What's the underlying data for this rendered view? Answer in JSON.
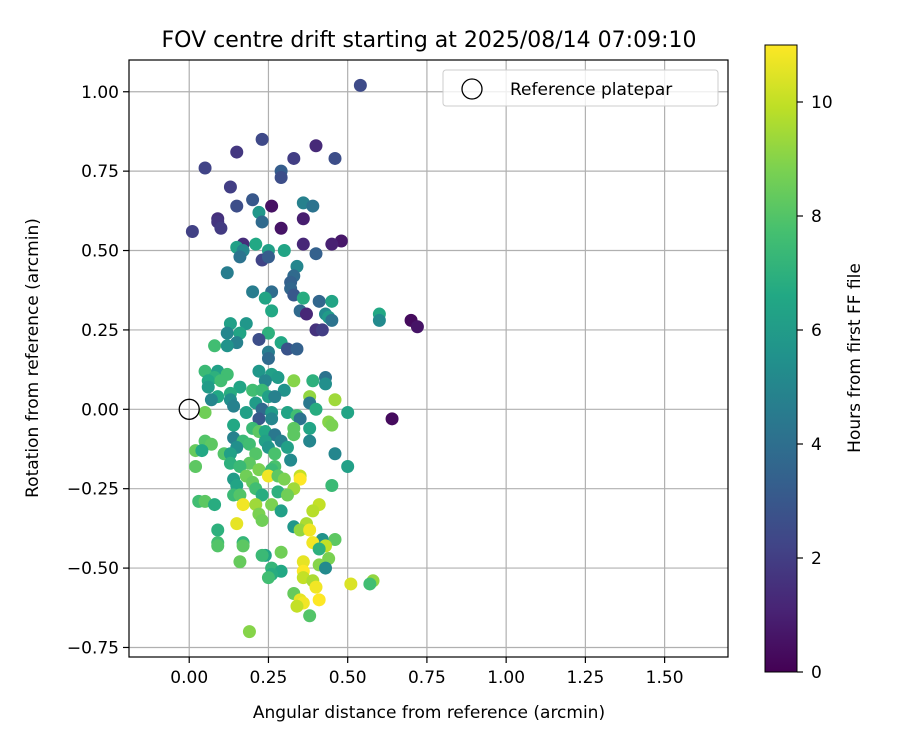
{
  "chart_data": {
    "type": "scatter",
    "title": "FOV centre drift starting at 2025/08/14 07:09:10",
    "xlabel": "Angular distance from reference (arcmin)",
    "ylabel": "Rotation from reference (arcmin)",
    "xlim": [
      -0.19,
      1.7
    ],
    "ylim": [
      -0.78,
      1.1
    ],
    "xticks": [
      0.0,
      0.25,
      0.5,
      0.75,
      1.0,
      1.25,
      1.5
    ],
    "xtick_labels": [
      "0.00",
      "0.25",
      "0.50",
      "0.75",
      "1.00",
      "1.25",
      "1.50"
    ],
    "yticks": [
      -0.75,
      -0.5,
      -0.25,
      0.0,
      0.25,
      0.5,
      0.75,
      1.0
    ],
    "ytick_labels": [
      "−0.75",
      "−0.50",
      "−0.25",
      "0.00",
      "0.25",
      "0.50",
      "0.75",
      "1.00"
    ],
    "grid": true,
    "legend": {
      "placement": "top-right",
      "entries": [
        {
          "label": "Reference platepar",
          "marker": "hollow-circle"
        }
      ]
    },
    "reference_point": {
      "x": 0.0,
      "y": 0.0
    },
    "colorbar": {
      "label": "Hours from first FF file",
      "colormap": "viridis",
      "range": [
        0,
        11
      ],
      "ticks": [
        0,
        2,
        4,
        6,
        8,
        10
      ],
      "tick_labels": [
        "0",
        "2",
        "4",
        "6",
        "8",
        "10"
      ]
    },
    "points": [
      {
        "x": 0.54,
        "y": 1.02,
        "c": 2.5
      },
      {
        "x": 0.23,
        "y": 0.85,
        "c": 2.4
      },
      {
        "x": 0.4,
        "y": 0.83,
        "c": 1.3
      },
      {
        "x": 0.15,
        "y": 0.81,
        "c": 1.8
      },
      {
        "x": 0.33,
        "y": 0.79,
        "c": 2.0
      },
      {
        "x": 0.46,
        "y": 0.79,
        "c": 2.6
      },
      {
        "x": 0.05,
        "y": 0.76,
        "c": 2.2
      },
      {
        "x": 0.29,
        "y": 0.75,
        "c": 3.2
      },
      {
        "x": 0.29,
        "y": 0.73,
        "c": 2.6
      },
      {
        "x": 0.13,
        "y": 0.7,
        "c": 2.0
      },
      {
        "x": 0.2,
        "y": 0.66,
        "c": 3.0
      },
      {
        "x": 0.36,
        "y": 0.65,
        "c": 4.8
      },
      {
        "x": 0.39,
        "y": 0.64,
        "c": 4.2
      },
      {
        "x": 0.15,
        "y": 0.64,
        "c": 2.6
      },
      {
        "x": 0.26,
        "y": 0.64,
        "c": 0.5
      },
      {
        "x": 0.22,
        "y": 0.62,
        "c": 5.8
      },
      {
        "x": 0.36,
        "y": 0.6,
        "c": 0.9
      },
      {
        "x": 0.09,
        "y": 0.6,
        "c": 1.5
      },
      {
        "x": 0.09,
        "y": 0.59,
        "c": 1.7
      },
      {
        "x": 0.23,
        "y": 0.59,
        "c": 3.8
      },
      {
        "x": 0.1,
        "y": 0.57,
        "c": 1.9
      },
      {
        "x": 0.29,
        "y": 0.57,
        "c": 0.6
      },
      {
        "x": 0.01,
        "y": 0.56,
        "c": 2.1
      },
      {
        "x": 0.48,
        "y": 0.53,
        "c": 0.7
      },
      {
        "x": 0.45,
        "y": 0.52,
        "c": 1.0
      },
      {
        "x": 0.36,
        "y": 0.52,
        "c": 1.2
      },
      {
        "x": 0.17,
        "y": 0.52,
        "c": 1.4
      },
      {
        "x": 0.21,
        "y": 0.52,
        "c": 6.6
      },
      {
        "x": 0.15,
        "y": 0.51,
        "c": 6.2
      },
      {
        "x": 0.17,
        "y": 0.5,
        "c": 5.0
      },
      {
        "x": 0.25,
        "y": 0.5,
        "c": 6.2
      },
      {
        "x": 0.3,
        "y": 0.5,
        "c": 6.4
      },
      {
        "x": 0.4,
        "y": 0.49,
        "c": 3.4
      },
      {
        "x": 0.16,
        "y": 0.48,
        "c": 4.2
      },
      {
        "x": 0.23,
        "y": 0.47,
        "c": 2.2
      },
      {
        "x": 0.25,
        "y": 0.48,
        "c": 3.2
      },
      {
        "x": 0.34,
        "y": 0.45,
        "c": 5.0
      },
      {
        "x": 0.12,
        "y": 0.43,
        "c": 4.6
      },
      {
        "x": 0.33,
        "y": 0.42,
        "c": 3.8
      },
      {
        "x": 0.32,
        "y": 0.4,
        "c": 3.4
      },
      {
        "x": 0.32,
        "y": 0.38,
        "c": 3.6
      },
      {
        "x": 0.26,
        "y": 0.37,
        "c": 3.9
      },
      {
        "x": 0.2,
        "y": 0.37,
        "c": 4.6
      },
      {
        "x": 0.33,
        "y": 0.36,
        "c": 3.0
      },
      {
        "x": 0.24,
        "y": 0.35,
        "c": 6.4
      },
      {
        "x": 0.36,
        "y": 0.35,
        "c": 6.8
      },
      {
        "x": 0.41,
        "y": 0.34,
        "c": 3.6
      },
      {
        "x": 0.45,
        "y": 0.34,
        "c": 6.4
      },
      {
        "x": 0.35,
        "y": 0.31,
        "c": 3.8
      },
      {
        "x": 0.26,
        "y": 0.31,
        "c": 6.6
      },
      {
        "x": 0.37,
        "y": 0.3,
        "c": 1.2
      },
      {
        "x": 0.43,
        "y": 0.3,
        "c": 5.2
      },
      {
        "x": 0.44,
        "y": 0.29,
        "c": 6.0
      },
      {
        "x": 0.45,
        "y": 0.28,
        "c": 4.2
      },
      {
        "x": 0.6,
        "y": 0.3,
        "c": 6.6
      },
      {
        "x": 0.6,
        "y": 0.28,
        "c": 5.2
      },
      {
        "x": 0.7,
        "y": 0.28,
        "c": 0.3
      },
      {
        "x": 0.72,
        "y": 0.26,
        "c": 0.6
      },
      {
        "x": 0.13,
        "y": 0.27,
        "c": 6.2
      },
      {
        "x": 0.18,
        "y": 0.27,
        "c": 5.8
      },
      {
        "x": 0.4,
        "y": 0.25,
        "c": 1.6
      },
      {
        "x": 0.42,
        "y": 0.25,
        "c": 2.0
      },
      {
        "x": 0.12,
        "y": 0.24,
        "c": 5.0
      },
      {
        "x": 0.16,
        "y": 0.24,
        "c": 6.4
      },
      {
        "x": 0.25,
        "y": 0.24,
        "c": 7.0
      },
      {
        "x": 0.22,
        "y": 0.22,
        "c": 2.6
      },
      {
        "x": 0.15,
        "y": 0.21,
        "c": 4.8
      },
      {
        "x": 0.29,
        "y": 0.21,
        "c": 6.6
      },
      {
        "x": 0.08,
        "y": 0.2,
        "c": 7.6
      },
      {
        "x": 0.12,
        "y": 0.2,
        "c": 5.6
      },
      {
        "x": 0.31,
        "y": 0.19,
        "c": 2.8
      },
      {
        "x": 0.34,
        "y": 0.19,
        "c": 3.4
      },
      {
        "x": 0.25,
        "y": 0.18,
        "c": 4.6
      },
      {
        "x": 0.25,
        "y": 0.16,
        "c": 3.8
      },
      {
        "x": 0.05,
        "y": 0.12,
        "c": 7.4
      },
      {
        "x": 0.09,
        "y": 0.12,
        "c": 6.2
      },
      {
        "x": 0.22,
        "y": 0.12,
        "c": 5.8
      },
      {
        "x": 0.12,
        "y": 0.11,
        "c": 7.6
      },
      {
        "x": 0.26,
        "y": 0.11,
        "c": 6.2
      },
      {
        "x": 0.08,
        "y": 0.1,
        "c": 7.0
      },
      {
        "x": 0.28,
        "y": 0.1,
        "c": 6.0
      },
      {
        "x": 0.43,
        "y": 0.1,
        "c": 4.2
      },
      {
        "x": 0.06,
        "y": 0.09,
        "c": 6.6
      },
      {
        "x": 0.1,
        "y": 0.09,
        "c": 7.6
      },
      {
        "x": 0.24,
        "y": 0.09,
        "c": 5.0
      },
      {
        "x": 0.33,
        "y": 0.09,
        "c": 9.0
      },
      {
        "x": 0.39,
        "y": 0.09,
        "c": 7.0
      },
      {
        "x": 0.43,
        "y": 0.08,
        "c": 5.4
      },
      {
        "x": 0.06,
        "y": 0.07,
        "c": 6.0
      },
      {
        "x": 0.16,
        "y": 0.07,
        "c": 6.4
      },
      {
        "x": 0.2,
        "y": 0.06,
        "c": 7.6
      },
      {
        "x": 0.23,
        "y": 0.06,
        "c": 7.4
      },
      {
        "x": 0.3,
        "y": 0.06,
        "c": 5.6
      },
      {
        "x": 0.13,
        "y": 0.05,
        "c": 6.8
      },
      {
        "x": 0.09,
        "y": 0.04,
        "c": 6.6
      },
      {
        "x": 0.07,
        "y": 0.03,
        "c": 5.0
      },
      {
        "x": 0.25,
        "y": 0.04,
        "c": 6.2
      },
      {
        "x": 0.27,
        "y": 0.04,
        "c": 4.8
      },
      {
        "x": 0.38,
        "y": 0.04,
        "c": 9.2
      },
      {
        "x": 0.46,
        "y": 0.03,
        "c": 9.4
      },
      {
        "x": 0.13,
        "y": 0.03,
        "c": 5.4
      },
      {
        "x": 0.14,
        "y": 0.01,
        "c": 4.8
      },
      {
        "x": 0.21,
        "y": 0.02,
        "c": 6.0
      },
      {
        "x": 0.38,
        "y": 0.02,
        "c": 4.4
      },
      {
        "x": 0.23,
        "y": 0.0,
        "c": 3.8
      },
      {
        "x": 0.31,
        "y": -0.01,
        "c": 6.4
      },
      {
        "x": 0.4,
        "y": 0.0,
        "c": 6.8
      },
      {
        "x": 0.05,
        "y": -0.01,
        "c": 8.6
      },
      {
        "x": 0.26,
        "y": -0.01,
        "c": 6.0
      },
      {
        "x": 0.18,
        "y": -0.01,
        "c": 6.2
      },
      {
        "x": 0.5,
        "y": -0.01,
        "c": 6.4
      },
      {
        "x": 0.34,
        "y": -0.02,
        "c": 7.6
      },
      {
        "x": 0.22,
        "y": -0.03,
        "c": 3.0
      },
      {
        "x": 0.26,
        "y": -0.03,
        "c": 5.0
      },
      {
        "x": 0.35,
        "y": -0.03,
        "c": 4.2
      },
      {
        "x": 0.44,
        "y": -0.04,
        "c": 9.0
      },
      {
        "x": 0.64,
        "y": -0.03,
        "c": 0.3
      },
      {
        "x": 0.14,
        "y": -0.05,
        "c": 6.6
      },
      {
        "x": 0.2,
        "y": -0.06,
        "c": 7.4
      },
      {
        "x": 0.22,
        "y": -0.07,
        "c": 8.2
      },
      {
        "x": 0.24,
        "y": -0.07,
        "c": 6.6
      },
      {
        "x": 0.45,
        "y": -0.05,
        "c": 8.8
      },
      {
        "x": 0.33,
        "y": -0.06,
        "c": 8.2
      },
      {
        "x": 0.38,
        "y": -0.06,
        "c": 6.4
      },
      {
        "x": 0.27,
        "y": -0.08,
        "c": 4.4
      },
      {
        "x": 0.14,
        "y": -0.09,
        "c": 4.8
      },
      {
        "x": 0.33,
        "y": -0.08,
        "c": 8.2
      },
      {
        "x": 0.05,
        "y": -0.1,
        "c": 8.0
      },
      {
        "x": 0.07,
        "y": -0.11,
        "c": 8.2
      },
      {
        "x": 0.17,
        "y": -0.1,
        "c": 7.4
      },
      {
        "x": 0.24,
        "y": -0.1,
        "c": 6.2
      },
      {
        "x": 0.29,
        "y": -0.1,
        "c": 4.8
      },
      {
        "x": 0.38,
        "y": -0.1,
        "c": 5.0
      },
      {
        "x": 0.19,
        "y": -0.11,
        "c": 7.6
      },
      {
        "x": 0.15,
        "y": -0.12,
        "c": 5.4
      },
      {
        "x": 0.25,
        "y": -0.12,
        "c": 5.8
      },
      {
        "x": 0.31,
        "y": -0.12,
        "c": 6.2
      },
      {
        "x": 0.02,
        "y": -0.13,
        "c": 8.4
      },
      {
        "x": 0.04,
        "y": -0.13,
        "c": 6.6
      },
      {
        "x": 0.11,
        "y": -0.14,
        "c": 8.0
      },
      {
        "x": 0.13,
        "y": -0.14,
        "c": 6.2
      },
      {
        "x": 0.21,
        "y": -0.14,
        "c": 8.0
      },
      {
        "x": 0.27,
        "y": -0.14,
        "c": 7.8
      },
      {
        "x": 0.46,
        "y": -0.14,
        "c": 5.0
      },
      {
        "x": 0.32,
        "y": -0.16,
        "c": 5.2
      },
      {
        "x": 0.13,
        "y": -0.17,
        "c": 7.0
      },
      {
        "x": 0.19,
        "y": -0.17,
        "c": 8.2
      },
      {
        "x": 0.27,
        "y": -0.18,
        "c": 7.8
      },
      {
        "x": 0.02,
        "y": -0.18,
        "c": 8.2
      },
      {
        "x": 0.16,
        "y": -0.18,
        "c": 7.4
      },
      {
        "x": 0.5,
        "y": -0.18,
        "c": 6.2
      },
      {
        "x": 0.22,
        "y": -0.19,
        "c": 8.8
      },
      {
        "x": 0.26,
        "y": -0.19,
        "c": 7.4
      },
      {
        "x": 0.18,
        "y": -0.21,
        "c": 8.6
      },
      {
        "x": 0.25,
        "y": -0.21,
        "c": 10.8
      },
      {
        "x": 0.28,
        "y": -0.21,
        "c": 8.2
      },
      {
        "x": 0.35,
        "y": -0.21,
        "c": 10.0
      },
      {
        "x": 0.14,
        "y": -0.22,
        "c": 6.0
      },
      {
        "x": 0.2,
        "y": -0.23,
        "c": 8.4
      },
      {
        "x": 0.3,
        "y": -0.22,
        "c": 8.8
      },
      {
        "x": 0.35,
        "y": -0.22,
        "c": 11.0
      },
      {
        "x": 0.15,
        "y": -0.24,
        "c": 6.4
      },
      {
        "x": 0.45,
        "y": -0.24,
        "c": 7.4
      },
      {
        "x": 0.33,
        "y": -0.25,
        "c": 9.4
      },
      {
        "x": 0.21,
        "y": -0.25,
        "c": 7.6
      },
      {
        "x": 0.28,
        "y": -0.26,
        "c": 7.0
      },
      {
        "x": 0.31,
        "y": -0.27,
        "c": 8.6
      },
      {
        "x": 0.23,
        "y": -0.27,
        "c": 6.8
      },
      {
        "x": 0.14,
        "y": -0.27,
        "c": 7.4
      },
      {
        "x": 0.16,
        "y": -0.27,
        "c": 8.0
      },
      {
        "x": 0.03,
        "y": -0.29,
        "c": 7.6
      },
      {
        "x": 0.05,
        "y": -0.29,
        "c": 8.2
      },
      {
        "x": 0.08,
        "y": -0.3,
        "c": 6.8
      },
      {
        "x": 0.17,
        "y": -0.3,
        "c": 10.8
      },
      {
        "x": 0.21,
        "y": -0.3,
        "c": 9.4
      },
      {
        "x": 0.26,
        "y": -0.3,
        "c": 8.8
      },
      {
        "x": 0.41,
        "y": -0.3,
        "c": 10.0
      },
      {
        "x": 0.29,
        "y": -0.32,
        "c": 6.2
      },
      {
        "x": 0.39,
        "y": -0.32,
        "c": 9.8
      },
      {
        "x": 0.22,
        "y": -0.33,
        "c": 8.8
      },
      {
        "x": 0.23,
        "y": -0.35,
        "c": 8.6
      },
      {
        "x": 0.15,
        "y": -0.36,
        "c": 10.6
      },
      {
        "x": 0.37,
        "y": -0.36,
        "c": 9.6
      },
      {
        "x": 0.33,
        "y": -0.37,
        "c": 5.8
      },
      {
        "x": 0.09,
        "y": -0.38,
        "c": 7.0
      },
      {
        "x": 0.35,
        "y": -0.38,
        "c": 9.2
      },
      {
        "x": 0.38,
        "y": -0.38,
        "c": 10.8
      },
      {
        "x": 0.42,
        "y": -0.41,
        "c": 5.6
      },
      {
        "x": 0.46,
        "y": -0.41,
        "c": 8.2
      },
      {
        "x": 0.09,
        "y": -0.42,
        "c": 7.6
      },
      {
        "x": 0.17,
        "y": -0.42,
        "c": 7.2
      },
      {
        "x": 0.39,
        "y": -0.42,
        "c": 10.8
      },
      {
        "x": 0.43,
        "y": -0.43,
        "c": 10.0
      },
      {
        "x": 0.09,
        "y": -0.43,
        "c": 8.0
      },
      {
        "x": 0.17,
        "y": -0.43,
        "c": 8.2
      },
      {
        "x": 0.41,
        "y": -0.44,
        "c": 7.0
      },
      {
        "x": 0.29,
        "y": -0.45,
        "c": 8.6
      },
      {
        "x": 0.24,
        "y": -0.46,
        "c": 6.4
      },
      {
        "x": 0.23,
        "y": -0.46,
        "c": 7.4
      },
      {
        "x": 0.44,
        "y": -0.47,
        "c": 8.8
      },
      {
        "x": 0.16,
        "y": -0.48,
        "c": 8.4
      },
      {
        "x": 0.36,
        "y": -0.48,
        "c": 10.6
      },
      {
        "x": 0.41,
        "y": -0.49,
        "c": 9.0
      },
      {
        "x": 0.26,
        "y": -0.5,
        "c": 7.2
      },
      {
        "x": 0.43,
        "y": -0.5,
        "c": 5.2
      },
      {
        "x": 0.36,
        "y": -0.51,
        "c": 11.0
      },
      {
        "x": 0.29,
        "y": -0.51,
        "c": 6.6
      },
      {
        "x": 0.26,
        "y": -0.52,
        "c": 6.8
      },
      {
        "x": 0.25,
        "y": -0.53,
        "c": 7.6
      },
      {
        "x": 0.36,
        "y": -0.53,
        "c": 10.0
      },
      {
        "x": 0.39,
        "y": -0.54,
        "c": 9.6
      },
      {
        "x": 0.51,
        "y": -0.55,
        "c": 10.4
      },
      {
        "x": 0.58,
        "y": -0.54,
        "c": 9.2
      },
      {
        "x": 0.57,
        "y": -0.55,
        "c": 7.6
      },
      {
        "x": 0.4,
        "y": -0.56,
        "c": 10.8
      },
      {
        "x": 0.33,
        "y": -0.58,
        "c": 8.4
      },
      {
        "x": 0.35,
        "y": -0.6,
        "c": 10.6
      },
      {
        "x": 0.41,
        "y": -0.6,
        "c": 11.0
      },
      {
        "x": 0.36,
        "y": -0.61,
        "c": 10.8
      },
      {
        "x": 0.34,
        "y": -0.62,
        "c": 10.0
      },
      {
        "x": 0.38,
        "y": -0.65,
        "c": 8.0
      },
      {
        "x": 0.19,
        "y": -0.7,
        "c": 9.0
      }
    ]
  }
}
